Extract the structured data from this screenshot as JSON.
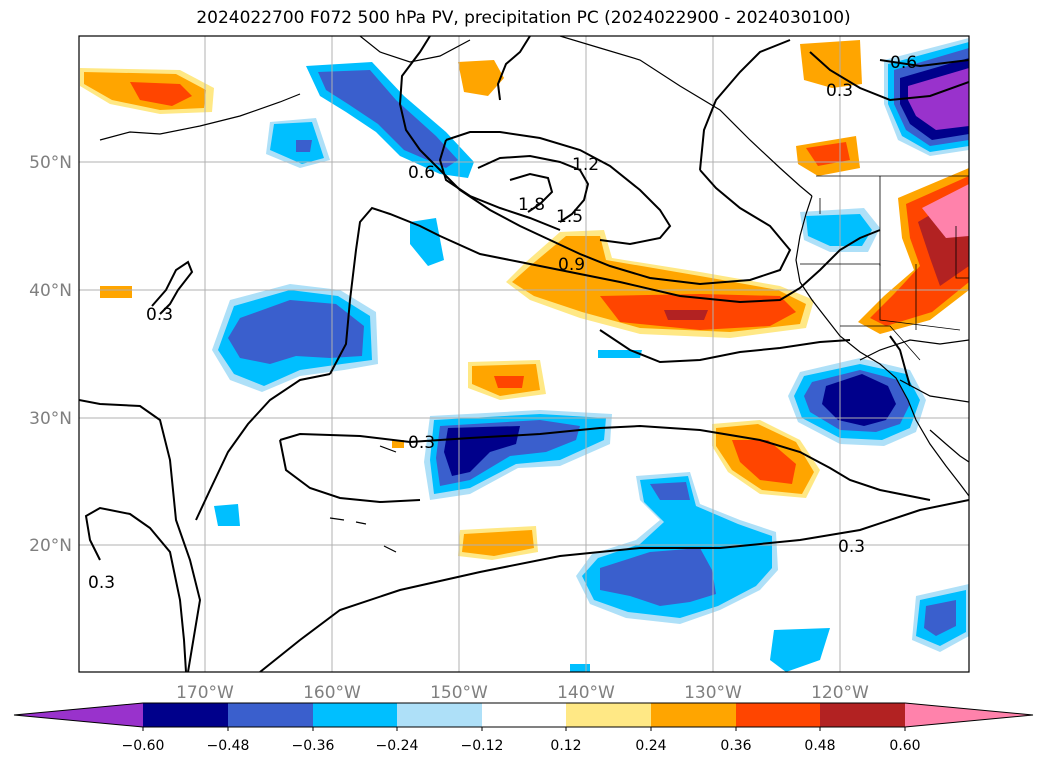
{
  "title": "2024022700 F072 500 hPa PV, precipitation PC (2024022900 - 2024030100)",
  "map": {
    "lat_labels": [
      "50°N",
      "40°N",
      "30°N",
      "20°N"
    ],
    "lon_labels": [
      "170°W",
      "160°W",
      "150°W",
      "140°W",
      "130°W",
      "120°W"
    ],
    "grid": true
  },
  "pv_contour_labels": [
    "0.3",
    "0.6",
    "0.9",
    "1.2",
    "1.5",
    "1.8"
  ],
  "colorbar": {
    "tick_labels": [
      "−0.60",
      "−0.48",
      "−0.36",
      "−0.24",
      "−0.12",
      "0.12",
      "0.24",
      "0.36",
      "0.48",
      "0.60"
    ],
    "colors": [
      "#9932cc",
      "#00008b",
      "#3a5fcd",
      "#00bfff",
      "#aee0f8",
      "#ffffff",
      "#ffe885",
      "#ffa500",
      "#ff4500",
      "#b22222",
      "#ff82ab"
    ],
    "extend": "both"
  }
}
